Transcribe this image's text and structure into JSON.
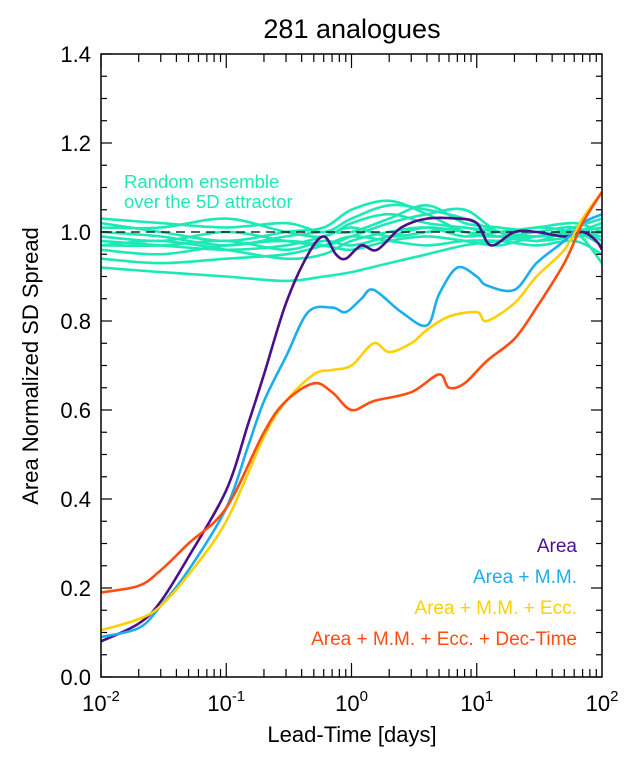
{
  "chart_data": {
    "type": "line",
    "title": "281 analogues",
    "xlabel": "Lead-Time [days]",
    "ylabel": "Area Normalized SD Spread",
    "xscale": "log",
    "xlim": [
      0.01,
      100
    ],
    "ylim": [
      0.0,
      1.4
    ],
    "x_ticks": [
      {
        "base": "10",
        "exp": "-2"
      },
      {
        "base": "10",
        "exp": "-1"
      },
      {
        "base": "10",
        "exp": "0"
      },
      {
        "base": "10",
        "exp": "1"
      },
      {
        "base": "10",
        "exp": "2"
      }
    ],
    "y_ticks": [
      "0.0",
      "0.2",
      "0.4",
      "0.6",
      "0.8",
      "1.0",
      "1.2",
      "1.4"
    ],
    "reference_line": {
      "y": 1.0,
      "style": "dashed",
      "color": "#000000"
    },
    "annotation": {
      "lines": [
        "Random ensemble",
        "over the 5D attractor"
      ],
      "color": "#1de9b6"
    },
    "legend_position": "bottom-right",
    "series": [
      {
        "name": "Area",
        "color": "#4b0f8c",
        "x": [
          0.01,
          0.02,
          0.03,
          0.05,
          0.1,
          0.15,
          0.2,
          0.3,
          0.45,
          0.6,
          0.75,
          0.9,
          1.2,
          1.6,
          2.5,
          4,
          7,
          10,
          13,
          20,
          30,
          50,
          70,
          90,
          100
        ],
        "y": [
          0.08,
          0.12,
          0.17,
          0.27,
          0.42,
          0.57,
          0.68,
          0.84,
          0.95,
          0.99,
          0.95,
          0.94,
          0.97,
          0.96,
          1.01,
          1.03,
          1.03,
          1.02,
          0.97,
          1.0,
          1.0,
          0.99,
          1.0,
          0.98,
          0.96
        ]
      },
      {
        "name": "Area + M.M.",
        "color": "#1aaef0",
        "x": [
          0.01,
          0.02,
          0.03,
          0.05,
          0.1,
          0.15,
          0.2,
          0.3,
          0.45,
          0.7,
          0.9,
          1.2,
          1.5,
          2.5,
          4,
          5,
          7,
          10,
          12,
          20,
          30,
          50,
          70,
          100
        ],
        "y": [
          0.09,
          0.11,
          0.16,
          0.24,
          0.38,
          0.52,
          0.62,
          0.72,
          0.82,
          0.83,
          0.82,
          0.85,
          0.87,
          0.82,
          0.79,
          0.86,
          0.92,
          0.9,
          0.88,
          0.87,
          0.93,
          0.98,
          1.02,
          1.04
        ]
      },
      {
        "name": "Area + M.M. + Ecc.",
        "color": "#ffd000",
        "x": [
          0.01,
          0.02,
          0.03,
          0.05,
          0.1,
          0.2,
          0.3,
          0.5,
          0.7,
          1.0,
          1.5,
          2,
          3,
          4,
          6,
          10,
          12,
          20,
          30,
          50,
          70,
          100
        ],
        "y": [
          0.105,
          0.13,
          0.16,
          0.23,
          0.35,
          0.54,
          0.62,
          0.68,
          0.69,
          0.7,
          0.75,
          0.73,
          0.75,
          0.78,
          0.81,
          0.82,
          0.8,
          0.84,
          0.9,
          0.96,
          1.03,
          1.09
        ]
      },
      {
        "name": "Area + M.M. + Ecc. + Dec-Time",
        "color": "#ff4e10",
        "x": [
          0.01,
          0.02,
          0.03,
          0.05,
          0.1,
          0.2,
          0.3,
          0.5,
          0.7,
          1.0,
          1.5,
          3,
          5,
          6,
          8,
          12,
          20,
          30,
          50,
          70,
          100
        ],
        "y": [
          0.19,
          0.205,
          0.24,
          0.3,
          0.38,
          0.55,
          0.62,
          0.66,
          0.64,
          0.6,
          0.62,
          0.64,
          0.68,
          0.65,
          0.66,
          0.71,
          0.76,
          0.83,
          0.93,
          1.02,
          1.09
        ]
      }
    ],
    "ensemble": {
      "name": "Random ensemble over the 5D attractor",
      "color": "#1de9b6",
      "x": [
        0.01,
        0.03,
        0.1,
        0.3,
        0.6,
        1,
        2,
        4,
        8,
        15,
        30,
        60,
        100
      ],
      "members": [
        [
          1.03,
          1.02,
          1.01,
          1.02,
          1.0,
          1.03,
          1.06,
          1.05,
          1.03,
          1.0,
          0.99,
          1.0,
          1.01
        ],
        [
          1.02,
          1.0,
          0.98,
          1.0,
          1.01,
          1.05,
          1.07,
          1.04,
          1.0,
          0.99,
          1.01,
          1.0,
          0.99
        ],
        [
          1.01,
          1.01,
          1.03,
          1.0,
          0.99,
          1.02,
          1.04,
          1.02,
          1.01,
          1.0,
          0.98,
          1.01,
          1.03
        ],
        [
          1.0,
          0.99,
          0.97,
          0.99,
          1.0,
          1.0,
          1.03,
          1.06,
          1.02,
          1.01,
          1.0,
          0.99,
          1.0
        ],
        [
          0.99,
          0.98,
          1.0,
          0.98,
          0.97,
          0.99,
          1.02,
          1.04,
          1.05,
          1.0,
          0.99,
          1.0,
          1.02
        ],
        [
          0.98,
          0.97,
          0.96,
          0.97,
          0.99,
          1.01,
          0.99,
          1.0,
          1.01,
          0.99,
          1.0,
          1.01,
          0.98
        ],
        [
          0.97,
          0.97,
          0.98,
          0.96,
          0.98,
          0.97,
          0.99,
          1.01,
          1.0,
          0.99,
          0.98,
          0.99,
          1.0
        ],
        [
          0.96,
          0.95,
          0.97,
          0.98,
          0.97,
          0.96,
          0.98,
          0.99,
          0.98,
          0.97,
          0.99,
          1.0,
          0.97
        ],
        [
          0.94,
          0.93,
          0.94,
          0.95,
          0.97,
          0.99,
          0.98,
          0.97,
          0.98,
          0.98,
          0.97,
          0.98,
          0.95
        ],
        [
          0.92,
          0.91,
          0.9,
          0.89,
          0.9,
          0.91,
          0.93,
          0.95,
          0.97,
          0.98,
          0.99,
          1.0,
          0.93
        ],
        [
          0.97,
          0.98,
          0.96,
          0.94,
          0.95,
          0.98,
          1.0,
          1.01,
          0.99,
          1.0,
          1.01,
          1.02,
          1.0
        ]
      ]
    }
  }
}
